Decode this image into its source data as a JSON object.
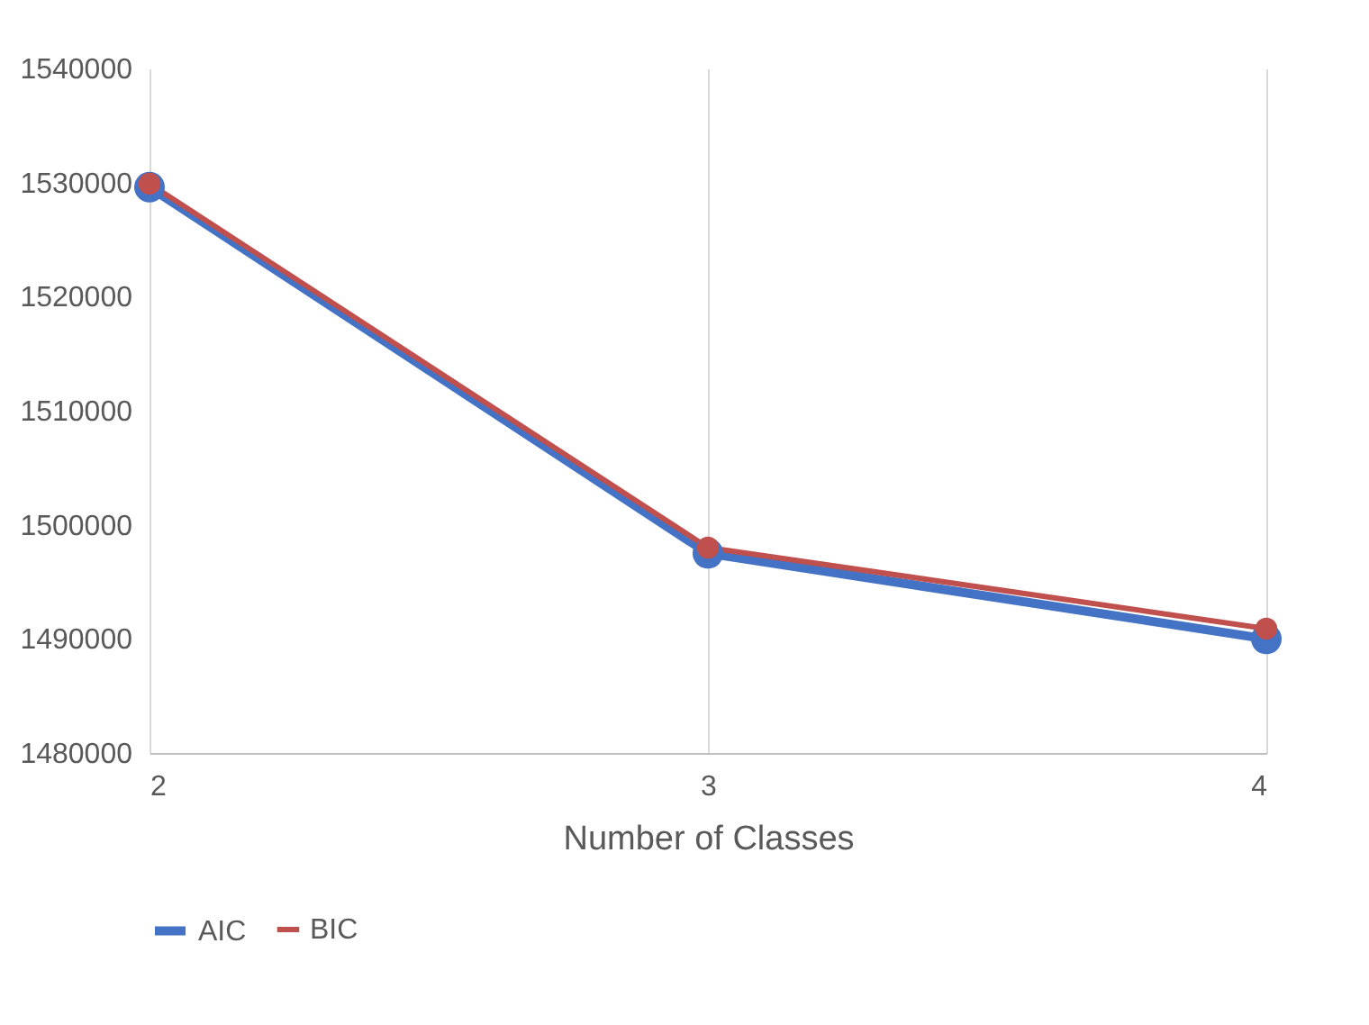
{
  "chart_data": {
    "type": "line",
    "xlabel": "Number of Classes",
    "x": [
      2,
      3,
      4
    ],
    "series": [
      {
        "name": "AIC",
        "color": "#4472c4",
        "values": [
          1529600,
          1497500,
          1490000
        ]
      },
      {
        "name": "BIC",
        "color": "#c0504d",
        "values": [
          1529900,
          1498000,
          1490900
        ]
      }
    ],
    "xlim": [
      2,
      4
    ],
    "xticks": [
      2,
      3,
      4
    ],
    "ylim": [
      1480000,
      1540000
    ],
    "yticks": [
      1480000,
      1490000,
      1500000,
      1510000,
      1520000,
      1530000,
      1540000
    ],
    "grid": "x",
    "legend": "bottom",
    "marker": "circle",
    "line_style": "solid"
  }
}
